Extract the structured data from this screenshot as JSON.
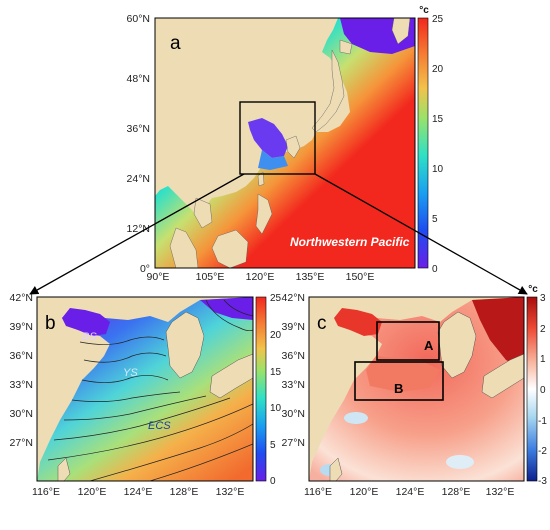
{
  "panel_a": {
    "letter": "a",
    "lat_ticks": [
      "60°N",
      "48°N",
      "36°N",
      "24°N",
      "12°N",
      "0°"
    ],
    "lon_ticks": [
      "90°E",
      "105°E",
      "120°E",
      "135°E",
      "150°E"
    ],
    "label": "Northwestern Pacific",
    "colorbar": {
      "unit": "°c",
      "ticks": [
        "25",
        "20",
        "15",
        "10",
        "5",
        "0"
      ],
      "range": [
        0,
        25
      ]
    }
  },
  "panel_b": {
    "letter": "b",
    "lat_ticks": [
      "42°N",
      "39°N",
      "36°N",
      "33°N",
      "30°N",
      "27°N"
    ],
    "lon_ticks": [
      "116°E",
      "120°E",
      "124°E",
      "128°E",
      "132°E"
    ],
    "region_labels": {
      "bs": "BS",
      "ys": "YS",
      "ecs": "ECS"
    },
    "colorbar": {
      "unit": "°c",
      "ticks": [
        "25",
        "20",
        "15",
        "10",
        "5",
        "0"
      ],
      "range": [
        0,
        25
      ]
    }
  },
  "panel_c": {
    "letter": "c",
    "lat_ticks": [
      "42°N",
      "39°N",
      "36°N",
      "33°N",
      "30°N",
      "27°N"
    ],
    "lon_ticks": [
      "116°E",
      "120°E",
      "124°E",
      "128°E",
      "132°E"
    ],
    "box_labels": {
      "a": "A",
      "b": "B"
    },
    "colorbar": {
      "unit": "°c",
      "ticks": [
        "3",
        "2",
        "1",
        "0",
        "-1",
        "-2",
        "-3"
      ],
      "range": [
        -3,
        3
      ]
    }
  },
  "colors": {
    "land": "#eedcb5",
    "sst_scale": [
      "#6a1fe8",
      "#1f4cf0",
      "#1a9ff0",
      "#2fe0c6",
      "#9ae26a",
      "#f2c24a",
      "#f57a33",
      "#f2281e"
    ],
    "anomaly_scale": [
      "#0d1f8c",
      "#3d7de0",
      "#a8d8f0",
      "#ffffff",
      "#f8b49c",
      "#ee4a36",
      "#a80c0c"
    ]
  }
}
